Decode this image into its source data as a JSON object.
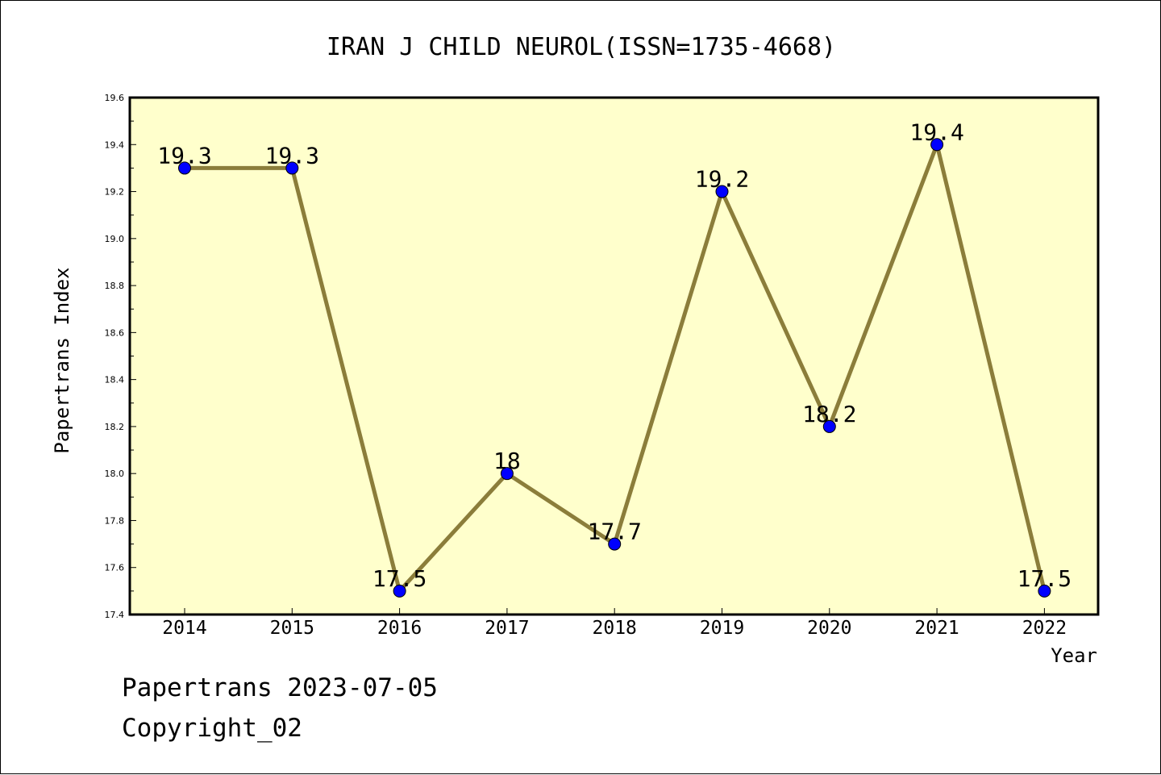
{
  "chart_data": {
    "type": "line",
    "title": "IRAN J CHILD NEUROL(ISSN=1735-4668)",
    "xlabel": "Year",
    "ylabel": "Papertrans Index",
    "categories": [
      "2014",
      "2015",
      "2016",
      "2017",
      "2018",
      "2019",
      "2020",
      "2021",
      "2022"
    ],
    "series": [
      {
        "values": [
          19.3,
          19.3,
          17.5,
          18.0,
          17.7,
          19.2,
          18.2,
          19.4,
          17.5
        ],
        "labels": [
          "19.3",
          "19.3",
          "17.5",
          "18",
          "17.7",
          "19.2",
          "18.2",
          "19.4",
          "17.5"
        ]
      }
    ],
    "ylim": [
      17.4,
      19.6
    ],
    "yticks": [
      "17.4",
      "17.6",
      "17.8",
      "18.0",
      "18.2",
      "18.4",
      "18.6",
      "18.8",
      "19.0",
      "19.2",
      "19.4",
      "19.6"
    ],
    "grid": false,
    "colors": {
      "plot_bg": "#ffffcc",
      "line": "#8b7d3a",
      "marker": "#0000ff"
    }
  },
  "footer": {
    "line1": "Papertrans 2023-07-05",
    "line2": "Copyright_02"
  }
}
